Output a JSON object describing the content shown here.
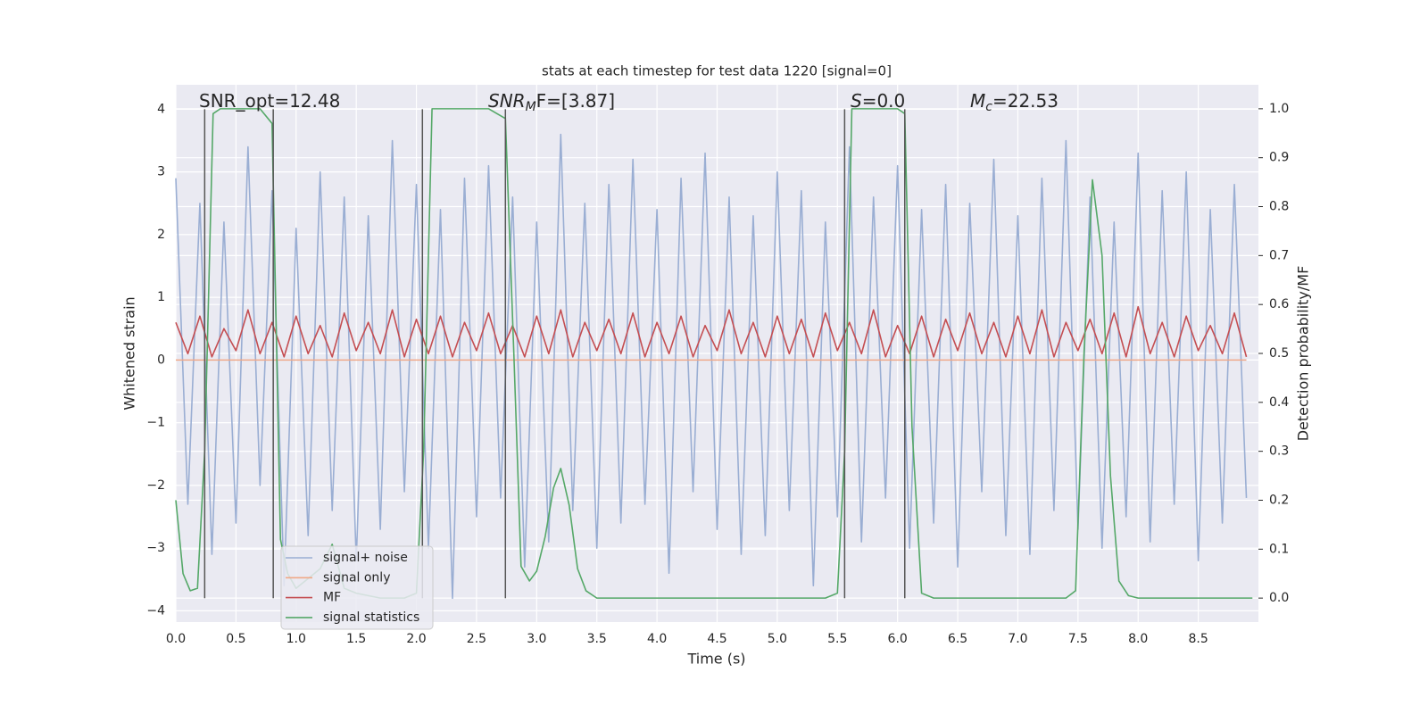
{
  "chart_data": {
    "type": "line",
    "title": "stats at each timestep for test data 1220 [signal=0]",
    "xlabel": "Time (s)",
    "ylabel": "Whitened strain",
    "y2label": "Detection probability/MF",
    "annotations": [
      {
        "base": "SNR_opt=12.48"
      },
      {
        "base": "SNR",
        "sub": "M",
        "rest": "F=[3.87]",
        "italic": true
      },
      {
        "base": "S",
        "rest": "=0.0",
        "italic": true
      },
      {
        "base": "M",
        "sub": "c",
        "rest": "=22.53",
        "italic": true
      }
    ],
    "xlim": [
      0,
      9.0
    ],
    "ylim": [
      -4.18,
      4.39
    ],
    "y2lim": [
      -0.049,
      1.049
    ],
    "xticks": [
      {
        "value": 0,
        "label": "0.0"
      },
      0.5,
      {
        "value": 1,
        "label": "1.0"
      },
      1.5,
      {
        "value": 2,
        "label": "2.0"
      },
      2.5,
      {
        "value": 3,
        "label": "3.0"
      },
      3.5,
      {
        "value": 4,
        "label": "4.0"
      },
      4.5,
      {
        "value": 5,
        "label": "5.0"
      },
      5.5,
      {
        "value": 6,
        "label": "6.0"
      },
      6.5,
      {
        "value": 7,
        "label": "7.0"
      },
      7.5,
      {
        "value": 8,
        "label": "8.0"
      },
      8.5
    ],
    "yticks": [
      {
        "value": -4,
        "label": "−4"
      },
      {
        "value": -3,
        "label": "−3"
      },
      {
        "value": -2,
        "label": "−2"
      },
      {
        "value": -1,
        "label": "−1"
      },
      0,
      1,
      2,
      3,
      4
    ],
    "y2ticks": [
      {
        "value": 0,
        "label": "0.0"
      },
      0.1,
      0.2,
      0.3,
      0.4,
      0.5,
      0.6,
      0.7,
      0.8,
      0.9,
      {
        "value": 1,
        "label": "1.0"
      }
    ],
    "grid": true,
    "legend": "lower left",
    "vlines": {
      "x": [
        0.24,
        0.81,
        2.05,
        2.74,
        5.56,
        6.06
      ],
      "ymin": -3.8,
      "ymax": 4,
      "color": "#555555"
    },
    "x": [
      0,
      0.1,
      0.2,
      0.3,
      0.4,
      0.5,
      0.6,
      0.7,
      0.8,
      0.9,
      1,
      1.1,
      1.2,
      1.3,
      1.4,
      1.5,
      1.6,
      1.7,
      1.8,
      1.9,
      2,
      2.1,
      2.2,
      2.3,
      2.4,
      2.5,
      2.6,
      2.7,
      2.8,
      2.9,
      3,
      3.1,
      3.2,
      3.3,
      3.4,
      3.5,
      3.6,
      3.7,
      3.8,
      3.9,
      4,
      4.1,
      4.2,
      4.3,
      4.4,
      4.5,
      4.6,
      4.7,
      4.8,
      4.9,
      5,
      5.1,
      5.2,
      5.3,
      5.4,
      5.5,
      5.6,
      5.7,
      5.8,
      5.9,
      6,
      6.1,
      6.2,
      6.3,
      6.4,
      6.5,
      6.6,
      6.7,
      6.8,
      6.9,
      7,
      7.1,
      7.2,
      7.3,
      7.4,
      7.5,
      7.6,
      7.7,
      7.8,
      7.9,
      8,
      8.1,
      8.2,
      8.3,
      8.4,
      8.5,
      8.6,
      8.7,
      8.8,
      8.9
    ],
    "series": [
      {
        "name": "signal+ noise",
        "color": "#9aaed3",
        "values": [
          2.9,
          -2.3,
          2.5,
          -3.1,
          2.2,
          -2.6,
          3.4,
          -2.0,
          2.7,
          -3.6,
          2.1,
          -2.8,
          3.0,
          -2.4,
          2.6,
          -3.2,
          2.3,
          -2.7,
          3.5,
          -2.1,
          2.8,
          -3.0,
          2.4,
          -3.8,
          2.9,
          -2.5,
          3.1,
          -2.2,
          2.6,
          -3.3,
          2.2,
          -2.9,
          3.6,
          -2.4,
          2.5,
          -3.0,
          2.8,
          -2.6,
          3.2,
          -2.3,
          2.4,
          -3.4,
          2.9,
          -2.1,
          3.3,
          -2.7,
          2.6,
          -3.1,
          2.3,
          -2.8,
          3.0,
          -2.4,
          2.7,
          -3.6,
          2.2,
          -2.5,
          3.4,
          -2.9,
          2.6,
          -2.2,
          3.1,
          -3.0,
          2.4,
          -2.6,
          2.8,
          -3.3,
          2.5,
          -2.1,
          3.2,
          -2.8,
          2.3,
          -3.1,
          2.9,
          -2.4,
          3.5,
          -2.7,
          2.6,
          -3.0,
          2.2,
          -2.5,
          3.3,
          -2.9,
          2.7,
          -2.3,
          3.0,
          -3.2,
          2.4,
          -2.6,
          2.8,
          -2.2
        ]
      },
      {
        "name": "signal only",
        "color": "#f0a888",
        "x": [
          0,
          8.9
        ],
        "values": [
          0,
          0
        ]
      },
      {
        "name": "MF",
        "color": "#c44e52",
        "values": [
          0.6,
          0.1,
          0.7,
          0.05,
          0.5,
          0.15,
          0.8,
          0.1,
          0.6,
          0.05,
          0.7,
          0.1,
          0.55,
          0.05,
          0.75,
          0.15,
          0.6,
          0.1,
          0.8,
          0.05,
          0.65,
          0.1,
          0.7,
          0.05,
          0.6,
          0.15,
          0.75,
          0.1,
          0.55,
          0.05,
          0.7,
          0.1,
          0.8,
          0.05,
          0.6,
          0.15,
          0.65,
          0.1,
          0.75,
          0.05,
          0.6,
          0.1,
          0.7,
          0.05,
          0.55,
          0.15,
          0.8,
          0.1,
          0.6,
          0.05,
          0.7,
          0.1,
          0.65,
          0.05,
          0.75,
          0.15,
          0.6,
          0.1,
          0.8,
          0.05,
          0.55,
          0.1,
          0.7,
          0.05,
          0.65,
          0.15,
          0.75,
          0.1,
          0.6,
          0.05,
          0.7,
          0.1,
          0.8,
          0.05,
          0.6,
          0.15,
          0.65,
          0.1,
          0.75,
          0.05,
          0.85,
          0.1,
          0.6,
          0.05,
          0.7,
          0.15,
          0.55,
          0.1,
          0.75,
          0.05
        ]
      },
      {
        "name": "signal statistics",
        "color": "#55a868",
        "axis": "y2",
        "x": [
          0,
          0.06,
          0.12,
          0.18,
          0.24,
          0.31,
          0.37,
          0.5,
          0.7,
          0.8,
          0.87,
          0.93,
          1.0,
          1.1,
          1.2,
          1.3,
          1.4,
          1.5,
          1.7,
          1.9,
          2.0,
          2.06,
          2.13,
          2.3,
          2.6,
          2.74,
          2.81,
          2.87,
          2.94,
          3.0,
          3.07,
          3.14,
          3.2,
          3.27,
          3.34,
          3.41,
          3.5,
          3.7,
          5.4,
          5.5,
          5.56,
          5.62,
          5.8,
          6.0,
          6.06,
          6.12,
          6.2,
          6.3,
          7.4,
          7.48,
          7.55,
          7.62,
          7.7,
          7.77,
          7.84,
          7.92,
          8.0,
          8.95
        ],
        "values": [
          0.2,
          0.05,
          0.015,
          0.02,
          0.3,
          0.99,
          1.0,
          1.0,
          1.0,
          0.97,
          0.12,
          0.05,
          0.02,
          0.04,
          0.06,
          0.11,
          0.02,
          0.01,
          0,
          0,
          0.01,
          0.3,
          1.0,
          1.0,
          1.0,
          0.98,
          0.5,
          0.065,
          0.035,
          0.055,
          0.125,
          0.225,
          0.265,
          0.19,
          0.06,
          0.015,
          0,
          0,
          0,
          0.01,
          0.3,
          1.0,
          1.0,
          1.0,
          0.99,
          0.35,
          0.01,
          0,
          0,
          0.015,
          0.5,
          0.855,
          0.7,
          0.25,
          0.035,
          0.005,
          0,
          0
        ]
      }
    ]
  }
}
